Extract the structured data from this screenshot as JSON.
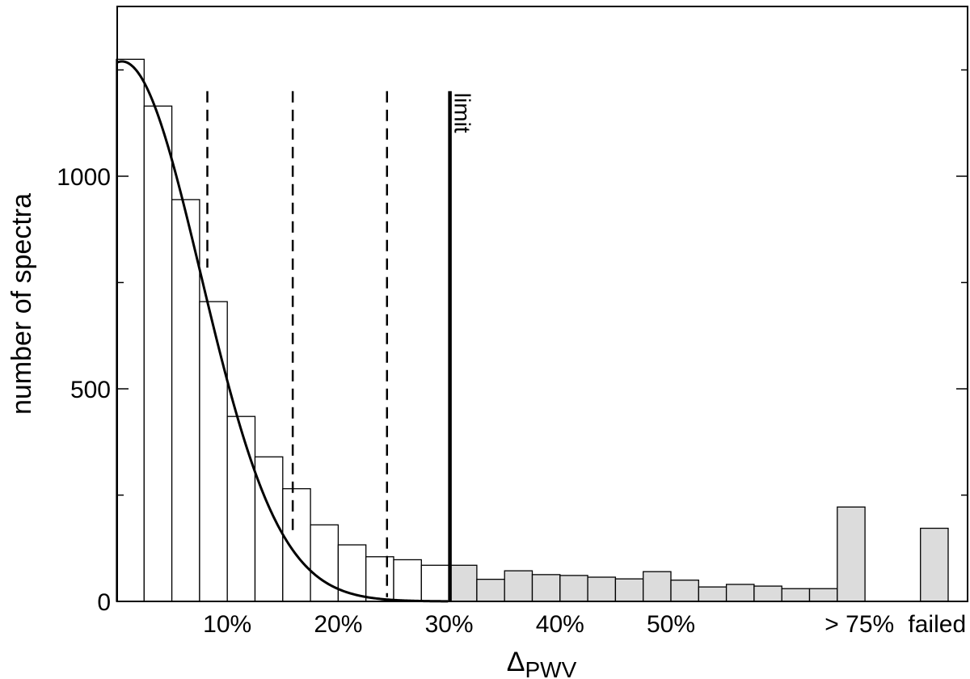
{
  "chart_data": {
    "type": "bar",
    "title": "",
    "xlabel": "Δ",
    "xlabel_sub": "PWV",
    "ylabel": "number of spectra",
    "ylim": [
      0,
      1400
    ],
    "xlim": [
      0,
      77
    ],
    "grid": false,
    "bin_width": 2.5,
    "bins_below_limit": {
      "x_left": [
        0,
        2.5,
        5,
        7.5,
        10,
        12.5,
        15,
        17.5,
        20,
        22.5,
        25,
        27.5
      ],
      "values": [
        1275,
        1165,
        945,
        705,
        435,
        340,
        265,
        180,
        133,
        105,
        98,
        85
      ],
      "fill": "#ffffff"
    },
    "bins_above_limit": {
      "x_left": [
        30,
        32.5,
        35,
        37.5,
        40,
        42.5,
        45,
        47.5,
        50,
        52.5,
        55,
        57.5,
        60,
        62.5,
        65
      ],
      "values": [
        85,
        52,
        72,
        63,
        61,
        57,
        53,
        70,
        50,
        34,
        40,
        36,
        30,
        30,
        222
      ],
      "fill": "#dcdcdc"
    },
    "failed_bin": {
      "x_left": 72.5,
      "value": 172,
      "fill": "#dcdcdc"
    },
    "y_ticks": [
      {
        "value": 0,
        "label": "0"
      },
      {
        "value": 500,
        "label": "500"
      },
      {
        "value": 1000,
        "label": "1000"
      }
    ],
    "y_minor_ticks": [
      250,
      750,
      1250
    ],
    "x_ticks": [
      {
        "value": 10,
        "label": "10%"
      },
      {
        "value": 20,
        "label": "20%"
      },
      {
        "value": 30,
        "label": "30%"
      },
      {
        "value": 40,
        "label": "40%"
      },
      {
        "value": 50,
        "label": "50%"
      }
    ],
    "x_text_labels": [
      {
        "value": 67,
        "label": "> 75%"
      },
      {
        "value": 74,
        "label": "failed"
      }
    ],
    "gaussian_fit": {
      "peak": 1270,
      "center": 0.5,
      "sigma": 7.1,
      "x_end": 30
    },
    "dashed_lines": [
      {
        "x": 8.2,
        "y_top": 1200,
        "y_bottom": 785
      },
      {
        "x": 15.9,
        "y_top": 1200,
        "y_bottom": 165
      },
      {
        "x": 24.4,
        "y_top": 1200,
        "y_bottom": 10
      }
    ],
    "limit_line": {
      "x": 30,
      "y_top": 1200,
      "label": "limit"
    },
    "colors": {
      "axis": "#000000",
      "below_fill": "#ffffff",
      "above_fill": "#dcdcdc"
    }
  }
}
